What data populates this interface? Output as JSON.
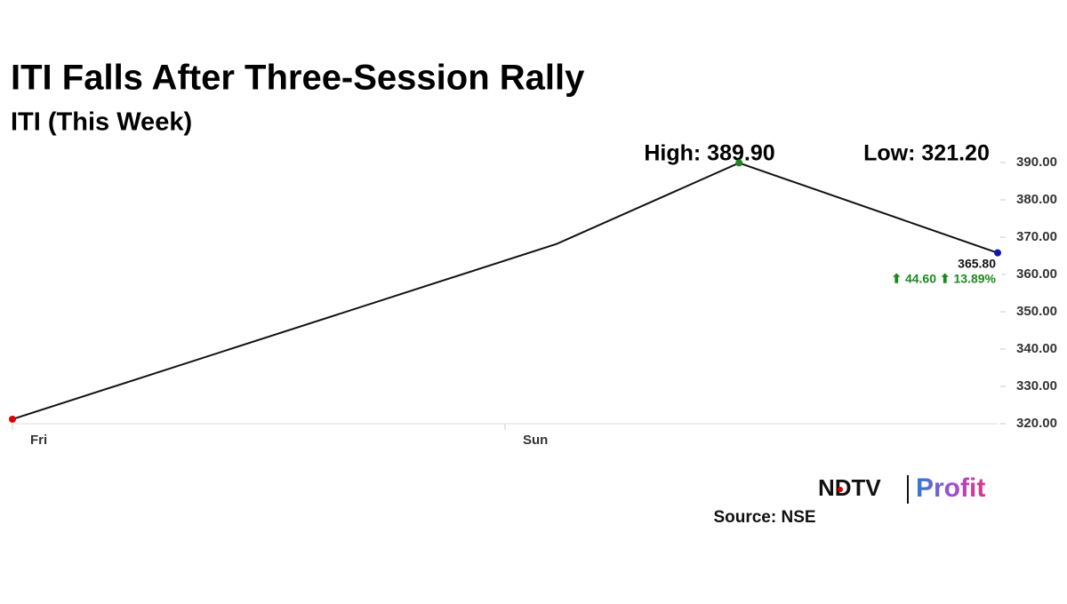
{
  "chart_data": {
    "type": "line",
    "title": "ITI Falls After Three-Session Rally",
    "subtitle": "ITI (This Week)",
    "x": [
      0,
      2.21,
      2.95,
      4
    ],
    "xlim": [
      0,
      4
    ],
    "xticks": [
      {
        "value": 0,
        "label": "Fri"
      },
      {
        "value": 2,
        "label": "Sun"
      }
    ],
    "series": [
      {
        "name": "ITI",
        "color": "#111111",
        "values": [
          321.2,
          368.2,
          389.9,
          365.8
        ],
        "marker_colors": [
          "#e00000",
          null,
          "#1a8a1a",
          "#1414b4"
        ],
        "value_labels": [
          null,
          null,
          null,
          "365.80"
        ]
      }
    ],
    "ylim": [
      320,
      390
    ],
    "yticks": [
      {
        "value": 320,
        "label": "320.00"
      },
      {
        "value": 330,
        "label": "330.00"
      },
      {
        "value": 340,
        "label": "340.00"
      },
      {
        "value": 350,
        "label": "350.00"
      },
      {
        "value": 360,
        "label": "360.00"
      },
      {
        "value": 370,
        "label": "370.00"
      },
      {
        "value": 380,
        "label": "380.00"
      },
      {
        "value": 390,
        "label": "390.00"
      }
    ],
    "annotations": {
      "high": "High: 389.90",
      "low": "Low: 321.20",
      "change": "⬆ 44.60 ⬆ 13.89%"
    },
    "logo": {
      "brand": "NDTV",
      "product": "Profit"
    },
    "source": "Source: NSE"
  }
}
